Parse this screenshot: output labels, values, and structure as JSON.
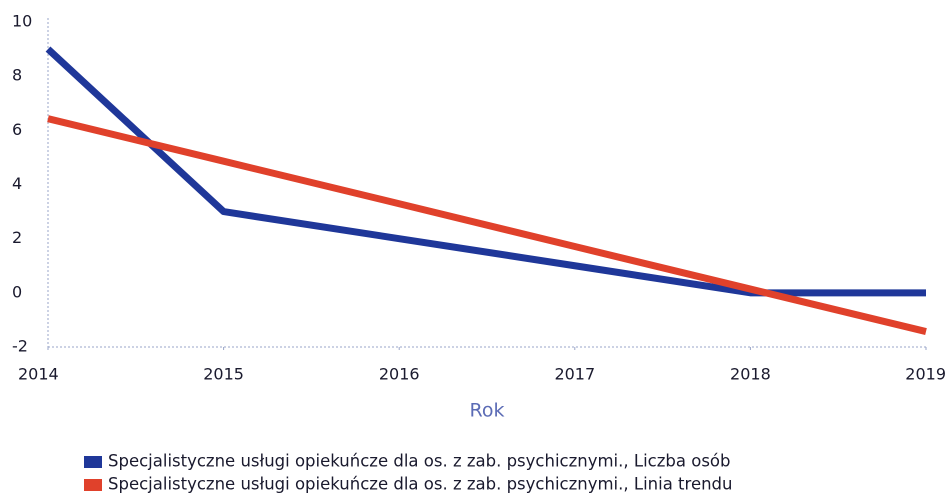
{
  "chart_data": {
    "type": "line",
    "x": [
      2014,
      2015,
      2016,
      2017,
      2018,
      2019
    ],
    "xlim": [
      2014,
      2019
    ],
    "xticks": [
      2014,
      2015,
      2016,
      2017,
      2018,
      2019
    ],
    "ylim": [
      -2,
      10
    ],
    "yticks": [
      -2,
      0,
      2,
      4,
      6,
      8,
      10
    ],
    "x_label": "Rok",
    "grid": false,
    "legend": "bottom",
    "series": [
      {
        "name": "Specjalistyczne usługi opiekuńcze dla os. z zab. psychicznymi., Liczba osób",
        "color": "#1f3799",
        "values": [
          9,
          3,
          2,
          1,
          0,
          0
        ]
      },
      {
        "name": "Specjalistyczne usługi opiekuńcze dla os. z zab. psychicznymi., Linia trendu",
        "color": "#e0412b",
        "values": [
          6.43,
          4.86,
          3.29,
          1.71,
          0.14,
          -1.43
        ]
      }
    ]
  }
}
